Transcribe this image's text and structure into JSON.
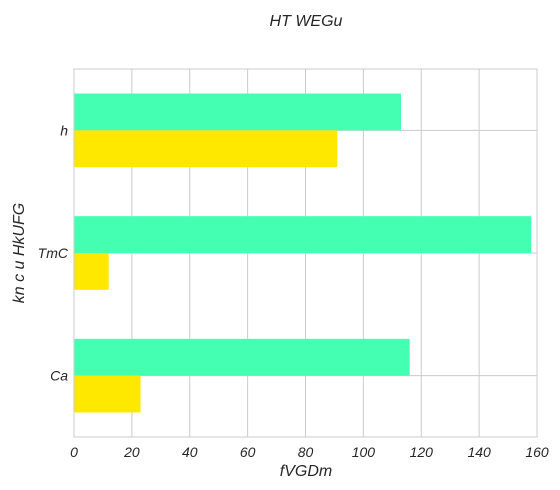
{
  "chart_data": {
    "type": "bar",
    "orientation": "horizontal",
    "title": "HT WEGu",
    "xlabel": "fVGDm",
    "ylabel": "kn c u HkUFG",
    "categories": [
      "Ca",
      "TmC",
      "h"
    ],
    "series": [
      {
        "values": [
          116,
          158,
          113
        ],
        "color": "#44ffb2"
      },
      {
        "values": [
          23,
          12,
          91
        ],
        "color": "#ffe800"
      }
    ],
    "xlim": [
      0,
      160
    ],
    "xticks": [
      0,
      20,
      40,
      60,
      80,
      100,
      120,
      140,
      160
    ],
    "grid": true,
    "legend": "none"
  }
}
